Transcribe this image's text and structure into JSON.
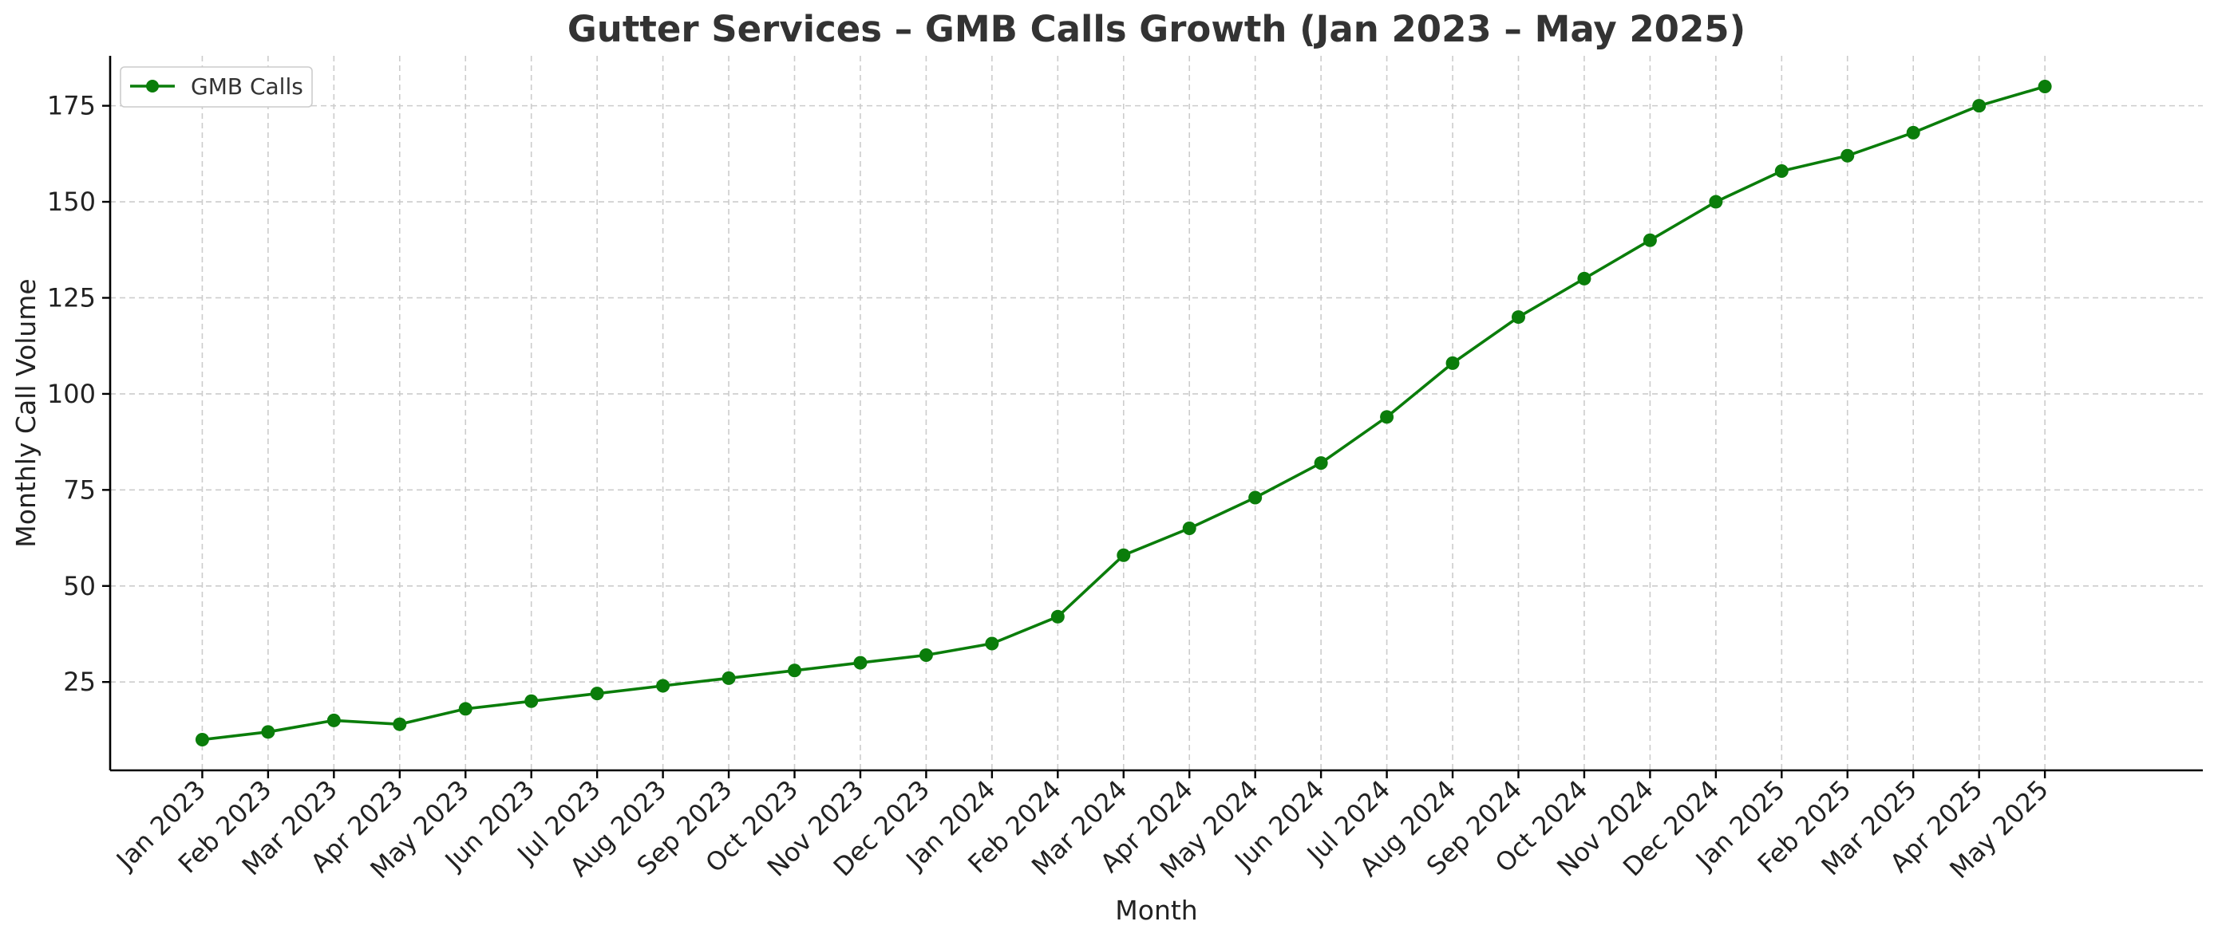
{
  "chart_data": {
    "type": "line",
    "title": "Gutter Services – GMB Calls Growth (Jan 2023 – May 2025)",
    "xlabel": "Month",
    "ylabel": "Monthly Call Volume",
    "categories": [
      "Jan 2023",
      "Feb 2023",
      "Mar 2023",
      "Apr 2023",
      "May 2023",
      "Jun 2023",
      "Jul 2023",
      "Aug 2023",
      "Sep 2023",
      "Oct 2023",
      "Nov 2023",
      "Dec 2023",
      "Jan 2024",
      "Feb 2024",
      "Mar 2024",
      "Apr 2024",
      "May 2024",
      "Jun 2024",
      "Jul 2024",
      "Aug 2024",
      "Sep 2024",
      "Oct 2024",
      "Nov 2024",
      "Dec 2024",
      "Jan 2025",
      "Feb 2025",
      "Mar 2025",
      "Apr 2025",
      "May 2025"
    ],
    "series": [
      {
        "name": "GMB Calls",
        "color": "#0a7d0a",
        "marker": "circle",
        "values": [
          10,
          12,
          15,
          14,
          18,
          20,
          22,
          24,
          26,
          28,
          30,
          32,
          35,
          42,
          58,
          65,
          73,
          82,
          94,
          108,
          120,
          130,
          140,
          150,
          158,
          162,
          168,
          175,
          180
        ]
      }
    ],
    "ylim": [
      2,
      188
    ],
    "yticks": [
      25,
      50,
      75,
      100,
      125,
      150,
      175
    ],
    "xlim": [
      -1.4,
      30.4
    ],
    "grid": true,
    "legend_position": "top-left"
  }
}
